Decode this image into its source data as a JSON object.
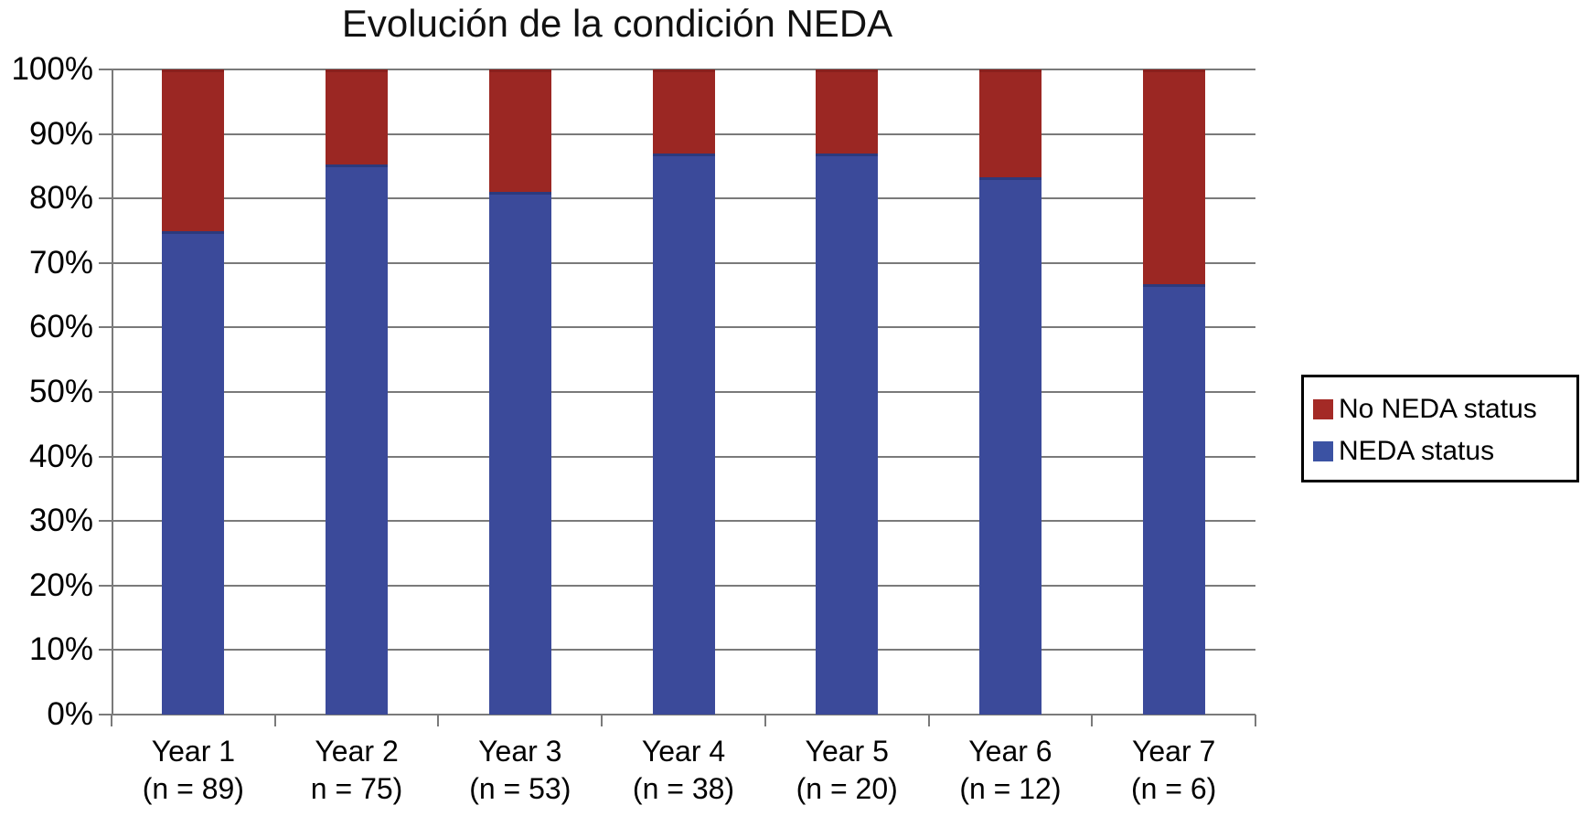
{
  "chart_data": {
    "type": "bar",
    "stacked": true,
    "percent_stacked": true,
    "title": "Evolución de la condición NEDA",
    "categories": [
      "Year 1",
      "Year 2",
      "Year 3",
      "Year 4",
      "Year 5",
      "Year 6",
      "Year 7"
    ],
    "n_labels": [
      "(n = 89)",
      "n = 75)",
      "(n = 53)",
      "(n = 38)",
      "(n = 20)",
      "(n = 12)",
      "(n = 6)"
    ],
    "series": [
      {
        "name": "NEDA status",
        "color": "#3b4a9a",
        "edge_color": "#2c3a7d",
        "values": [
          75,
          85.3,
          81,
          87,
          87,
          83.3,
          66.7
        ]
      },
      {
        "name": "No NEDA status",
        "color": "#9b2723",
        "edge_color": "#8a201d",
        "values": [
          25,
          14.7,
          19,
          13,
          13,
          16.7,
          33.3
        ]
      }
    ],
    "ylim": [
      0,
      100
    ],
    "ytick_step": 10,
    "ytick_labels": [
      "0%",
      "10%",
      "20%",
      "30%",
      "40%",
      "50%",
      "60%",
      "70%",
      "80%",
      "90%",
      "100%"
    ],
    "grid": "horizontal",
    "gridline_color": "#7a7a7a",
    "legend_position": "right",
    "legend": [
      {
        "label": "No NEDA status",
        "color": "#a42a26"
      },
      {
        "label": "NEDA status",
        "color": "#3b52a3"
      }
    ]
  }
}
